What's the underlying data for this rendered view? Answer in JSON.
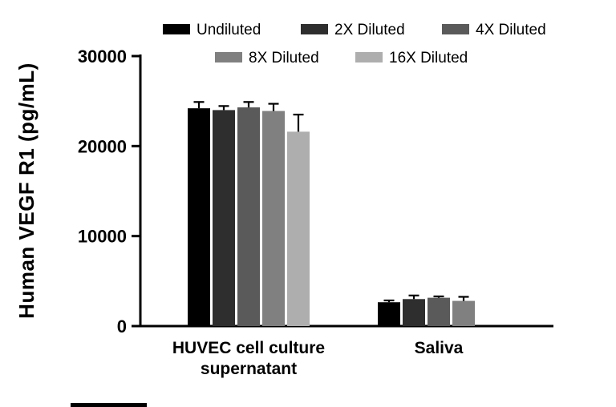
{
  "figure": {
    "background": "#ffffff",
    "axis_color": "#000000"
  },
  "chart_data": {
    "type": "bar",
    "title": "",
    "xlabel": "",
    "ylabel": "Human VEGF R1 (pg/mL)",
    "ylim": [
      0,
      30000
    ],
    "yticks": [
      0,
      10000,
      20000,
      30000
    ],
    "ytick_labels": [
      "0",
      "10000",
      "20000",
      "30000"
    ],
    "categories": [
      "HUVEC cell culture\nsupernatant",
      "Saliva"
    ],
    "grid": false,
    "legend_position": "top",
    "error_bars": "upper SD whiskers",
    "series": [
      {
        "name": "Undiluted",
        "color": "#000000",
        "values": [
          24200,
          2650
        ],
        "errors": [
          700,
          200
        ]
      },
      {
        "name": "2X Diluted",
        "color": "#2e2e2e",
        "values": [
          24000,
          3000
        ],
        "errors": [
          450,
          400
        ]
      },
      {
        "name": "4X Diluted",
        "color": "#5a5a5a",
        "values": [
          24300,
          3150
        ],
        "errors": [
          600,
          150
        ]
      },
      {
        "name": "8X Diluted",
        "color": "#808080",
        "values": [
          23900,
          2800
        ],
        "errors": [
          800,
          450
        ]
      },
      {
        "name": "16X Diluted",
        "color": "#aeaeae",
        "values": [
          21600,
          null
        ],
        "errors": [
          1900,
          null
        ]
      }
    ]
  }
}
